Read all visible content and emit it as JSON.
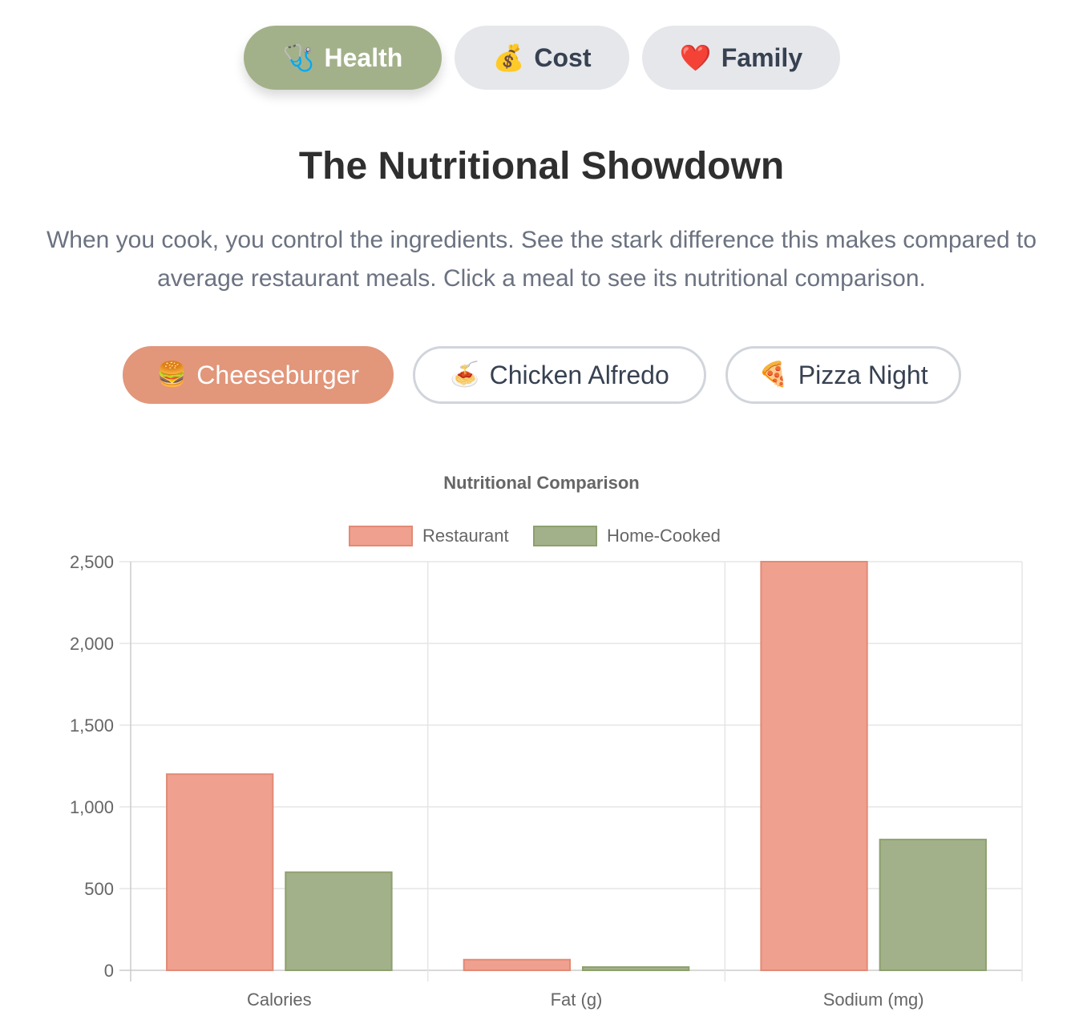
{
  "tabs": [
    {
      "icon": "🩺",
      "label": "Health",
      "active": true
    },
    {
      "icon": "💰",
      "label": "Cost",
      "active": false
    },
    {
      "icon": "❤️",
      "label": "Family",
      "active": false
    }
  ],
  "headline": "The Nutritional Showdown",
  "subtext": "When you cook, you control the ingredients. See the stark difference this makes compared to average restaurant meals. Click a meal to see its nutritional comparison.",
  "meals": [
    {
      "icon": "🍔",
      "label": "Cheeseburger",
      "active": true
    },
    {
      "icon": "🍝",
      "label": "Chicken Alfredo",
      "active": false
    },
    {
      "icon": "🍕",
      "label": "Pizza Night",
      "active": false
    }
  ],
  "colors": {
    "restaurant": "#f0a08e",
    "home_cooked": "#a3b18a",
    "active_meal": "#e2967a",
    "active_tab": "#a3b18a"
  },
  "chart_data": {
    "type": "bar",
    "title": "Nutritional Comparison",
    "categories": [
      "Calories",
      "Fat (g)",
      "Sodium (mg)"
    ],
    "series": [
      {
        "name": "Restaurant",
        "values": [
          1200,
          65,
          2500
        ]
      },
      {
        "name": "Home-Cooked",
        "values": [
          600,
          20,
          800
        ]
      }
    ],
    "ylim": [
      0,
      2500
    ],
    "yticks": [
      0,
      500,
      1000,
      1500,
      2000,
      2500
    ],
    "ytick_labels": [
      "0",
      "500",
      "1,000",
      "1,500",
      "2,000",
      "2,500"
    ],
    "grid": true,
    "legend": "top"
  }
}
